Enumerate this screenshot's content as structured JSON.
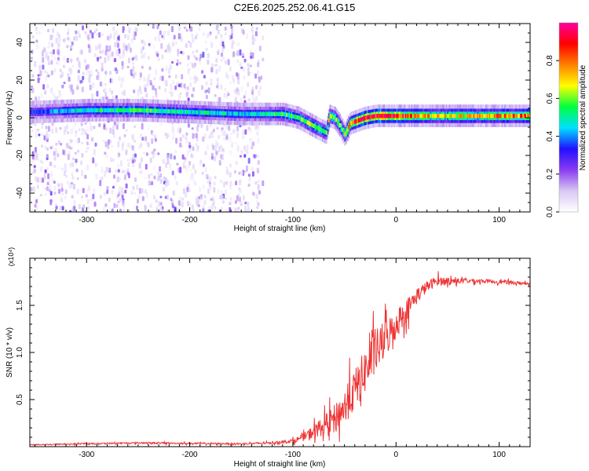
{
  "title": "C2E6.2025.252.06.41.G15",
  "colors": {
    "line": "#ee3333",
    "axis": "#000000",
    "colorbar_stops": [
      "#ffffff",
      "#d8c8f4",
      "#8a3cf0",
      "#2010ff",
      "#00e0ff",
      "#00ff40",
      "#ffff00",
      "#ff8000",
      "#ff0000",
      "#ff00a0"
    ]
  },
  "chart_data": [
    {
      "type": "heatmap",
      "title": "",
      "xlabel": "Height of straight line (km)",
      "ylabel": "Frequency (Hz)",
      "xlim": [
        -355,
        130
      ],
      "ylim": [
        -50,
        50
      ],
      "xticks": [
        -300,
        -200,
        -100,
        0,
        100
      ],
      "xtick_labels": [
        "-300",
        "-200",
        "-100",
        "0",
        "100"
      ],
      "yticks": [
        -40,
        -20,
        0,
        20,
        40
      ],
      "ytick_labels": [
        "-40",
        "-20",
        "0",
        "20",
        "40"
      ],
      "colorbar": {
        "label": "Normalized spectral amplitude",
        "range": [
          0,
          1
        ],
        "ticks": [
          0.0,
          0.2,
          0.4,
          0.6,
          0.8
        ],
        "tick_labels": [
          "0.0",
          "0.2",
          "0.4",
          "0.6",
          "0.8"
        ]
      },
      "ridge": {
        "name": "carrier frequency ridge",
        "x": [
          -355,
          -300,
          -250,
          -200,
          -150,
          -125,
          -110,
          -95,
          -85,
          -75,
          -68,
          -65,
          -60,
          -55,
          -50,
          -45,
          -40,
          -30,
          -20,
          -10,
          0,
          20,
          50,
          80,
          130
        ],
        "y": [
          3,
          4,
          4,
          3,
          2,
          2,
          2,
          0,
          -3,
          -6,
          -8,
          1,
          0,
          -4,
          -9,
          -3,
          -2,
          0,
          1,
          1,
          1,
          1,
          1,
          1,
          1
        ],
        "peak": [
          0.35,
          0.5,
          0.55,
          0.5,
          0.45,
          0.5,
          0.55,
          0.55,
          0.6,
          0.65,
          0.55,
          0.7,
          0.6,
          0.6,
          0.65,
          0.75,
          0.85,
          0.95,
          0.95,
          0.95,
          0.9,
          0.75,
          0.7,
          0.75,
          0.8
        ]
      },
      "noise_region_x": [
        -355,
        -130
      ]
    },
    {
      "type": "line",
      "title": "",
      "xlabel": "Height of straight line (km)",
      "ylabel": "SNR (10 * v/v)",
      "y_multiplier": "(x10⁴)",
      "xlim": [
        -355,
        130
      ],
      "ylim": [
        0,
        2.0
      ],
      "xticks": [
        -300,
        -200,
        -100,
        0,
        100
      ],
      "xtick_labels": [
        "-300",
        "-200",
        "-100",
        "0",
        "100"
      ],
      "yticks": [
        0.5,
        1.0,
        1.5
      ],
      "ytick_labels": [
        "0.5",
        "1.0",
        "1.5"
      ],
      "series": [
        {
          "name": "SNR",
          "x": [
            -355,
            -250,
            -150,
            -120,
            -100,
            -90,
            -80,
            -70,
            -60,
            -50,
            -40,
            -30,
            -20,
            -10,
            0,
            10,
            20,
            30,
            40,
            50,
            60,
            80,
            100,
            130
          ],
          "y": [
            0.02,
            0.04,
            0.03,
            0.04,
            0.06,
            0.1,
            0.16,
            0.22,
            0.3,
            0.42,
            0.6,
            0.8,
            1.0,
            1.15,
            1.3,
            1.45,
            1.6,
            1.7,
            1.76,
            1.76,
            1.76,
            1.76,
            1.75,
            1.73
          ],
          "noise": [
            0.005,
            0.008,
            0.008,
            0.01,
            0.02,
            0.04,
            0.07,
            0.1,
            0.14,
            0.18,
            0.22,
            0.24,
            0.24,
            0.2,
            0.16,
            0.12,
            0.09,
            0.06,
            0.05,
            0.04,
            0.03,
            0.02,
            0.02,
            0.015
          ]
        }
      ]
    }
  ]
}
